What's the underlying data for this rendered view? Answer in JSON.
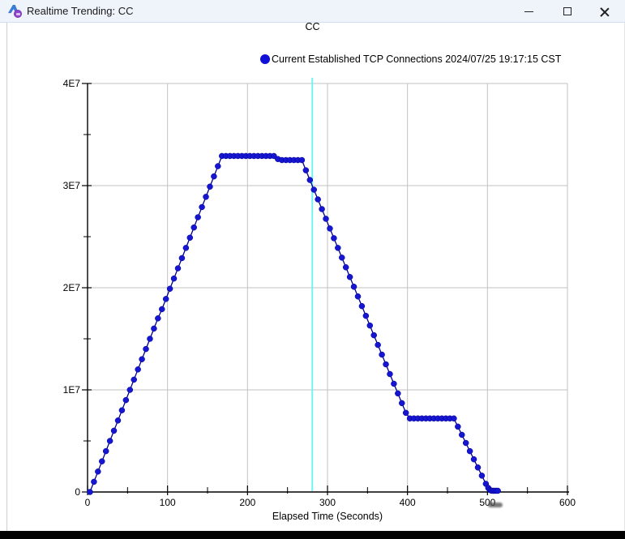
{
  "window": {
    "title": "Realtime Trending: CC",
    "controls": [
      "minimize",
      "maximize",
      "close"
    ]
  },
  "chart": {
    "title": "CC",
    "legend": {
      "label": "Current Established TCP Connections 2024/07/25 19:17:15 CST",
      "marker_color": "#1010d8"
    }
  },
  "colors": {
    "series_blue": "#1515d2",
    "series_line": "#00008b",
    "cursor_cyan": "#70f4f4",
    "grid": "#c2c2c2",
    "axis": "#000000"
  },
  "chart_data": {
    "type": "scatter",
    "title": "CC",
    "xlabel": "Elapsed Time (Seconds)",
    "ylabel": "",
    "xlim": [
      0,
      600
    ],
    "ylim": [
      0,
      40000000
    ],
    "grid": true,
    "legend_position": "top",
    "x_ticks": [
      0,
      100,
      200,
      300,
      400,
      500,
      600
    ],
    "x_minor_step": 50,
    "y_ticks": [
      {
        "v": 0,
        "label": "0"
      },
      {
        "v": 10000000,
        "label": "1E7"
      },
      {
        "v": 20000000,
        "label": "2E7"
      },
      {
        "v": 30000000,
        "label": "3E7"
      },
      {
        "v": 40000000,
        "label": "4E7"
      }
    ],
    "y_minor_step": 5000000,
    "cursor_line": {
      "x": 281,
      "color": "#70f4f4"
    },
    "series": [
      {
        "name": "Current Established TCP Connections 2024/07/25 19:17:15 CST",
        "color": "#1515d2",
        "points": [
          [
            3,
            0
          ],
          [
            8,
            1000000
          ],
          [
            13,
            2000000
          ],
          [
            18,
            3000000
          ],
          [
            23,
            4000000
          ],
          [
            28,
            5000000
          ],
          [
            33,
            6000000
          ],
          [
            38,
            7000000
          ],
          [
            43,
            8000000
          ],
          [
            48,
            9000000
          ],
          [
            53,
            10000000
          ],
          [
            58,
            11000000
          ],
          [
            63,
            12000000
          ],
          [
            68,
            13000000
          ],
          [
            73,
            14000000
          ],
          [
            78,
            15000000
          ],
          [
            83,
            16000000
          ],
          [
            88,
            17000000
          ],
          [
            93,
            17900000
          ],
          [
            98,
            18900000
          ],
          [
            103,
            19900000
          ],
          [
            108,
            20900000
          ],
          [
            113,
            21900000
          ],
          [
            118,
            22900000
          ],
          [
            123,
            23900000
          ],
          [
            128,
            24900000
          ],
          [
            133,
            25900000
          ],
          [
            138,
            26900000
          ],
          [
            143,
            27900000
          ],
          [
            148,
            28900000
          ],
          [
            153,
            29900000
          ],
          [
            158,
            30900000
          ],
          [
            163,
            31900000
          ],
          [
            168,
            32900000
          ],
          [
            173,
            32900000
          ],
          [
            178,
            32900000
          ],
          [
            183,
            32900000
          ],
          [
            188,
            32900000
          ],
          [
            193,
            32900000
          ],
          [
            198,
            32900000
          ],
          [
            203,
            32900000
          ],
          [
            208,
            32900000
          ],
          [
            213,
            32900000
          ],
          [
            218,
            32900000
          ],
          [
            223,
            32900000
          ],
          [
            228,
            32900000
          ],
          [
            233,
            32900000
          ],
          [
            238,
            32600000
          ],
          [
            243,
            32500000
          ],
          [
            248,
            32500000
          ],
          [
            253,
            32500000
          ],
          [
            258,
            32500000
          ],
          [
            263,
            32500000
          ],
          [
            268,
            32500000
          ],
          [
            273,
            31500000
          ],
          [
            278,
            30550000
          ],
          [
            283,
            29600000
          ],
          [
            288,
            28650000
          ],
          [
            293,
            27700000
          ],
          [
            298,
            26750000
          ],
          [
            303,
            25800000
          ],
          [
            308,
            24850000
          ],
          [
            313,
            23900000
          ],
          [
            318,
            22950000
          ],
          [
            323,
            22000000
          ],
          [
            328,
            21050000
          ],
          [
            333,
            20100000
          ],
          [
            338,
            19150000
          ],
          [
            343,
            18200000
          ],
          [
            348,
            17250000
          ],
          [
            353,
            16300000
          ],
          [
            358,
            15350000
          ],
          [
            363,
            14400000
          ],
          [
            368,
            13450000
          ],
          [
            373,
            12500000
          ],
          [
            378,
            11550000
          ],
          [
            383,
            10600000
          ],
          [
            388,
            9650000
          ],
          [
            393,
            8700000
          ],
          [
            398,
            7750000
          ],
          [
            403,
            7200000
          ],
          [
            408,
            7200000
          ],
          [
            413,
            7200000
          ],
          [
            418,
            7200000
          ],
          [
            423,
            7200000
          ],
          [
            428,
            7200000
          ],
          [
            433,
            7200000
          ],
          [
            438,
            7200000
          ],
          [
            443,
            7200000
          ],
          [
            448,
            7200000
          ],
          [
            453,
            7200000
          ],
          [
            458,
            7200000
          ],
          [
            463,
            6400000
          ],
          [
            468,
            5600000
          ],
          [
            473,
            4800000
          ],
          [
            478,
            4000000
          ],
          [
            483,
            3200000
          ],
          [
            488,
            2400000
          ],
          [
            493,
            1600000
          ],
          [
            498,
            800000
          ],
          [
            501,
            400000
          ],
          [
            503,
            200000
          ],
          [
            505,
            130000
          ],
          [
            507,
            120000
          ],
          [
            509,
            120000
          ],
          [
            511,
            120000
          ],
          [
            513,
            120000
          ]
        ]
      }
    ]
  }
}
